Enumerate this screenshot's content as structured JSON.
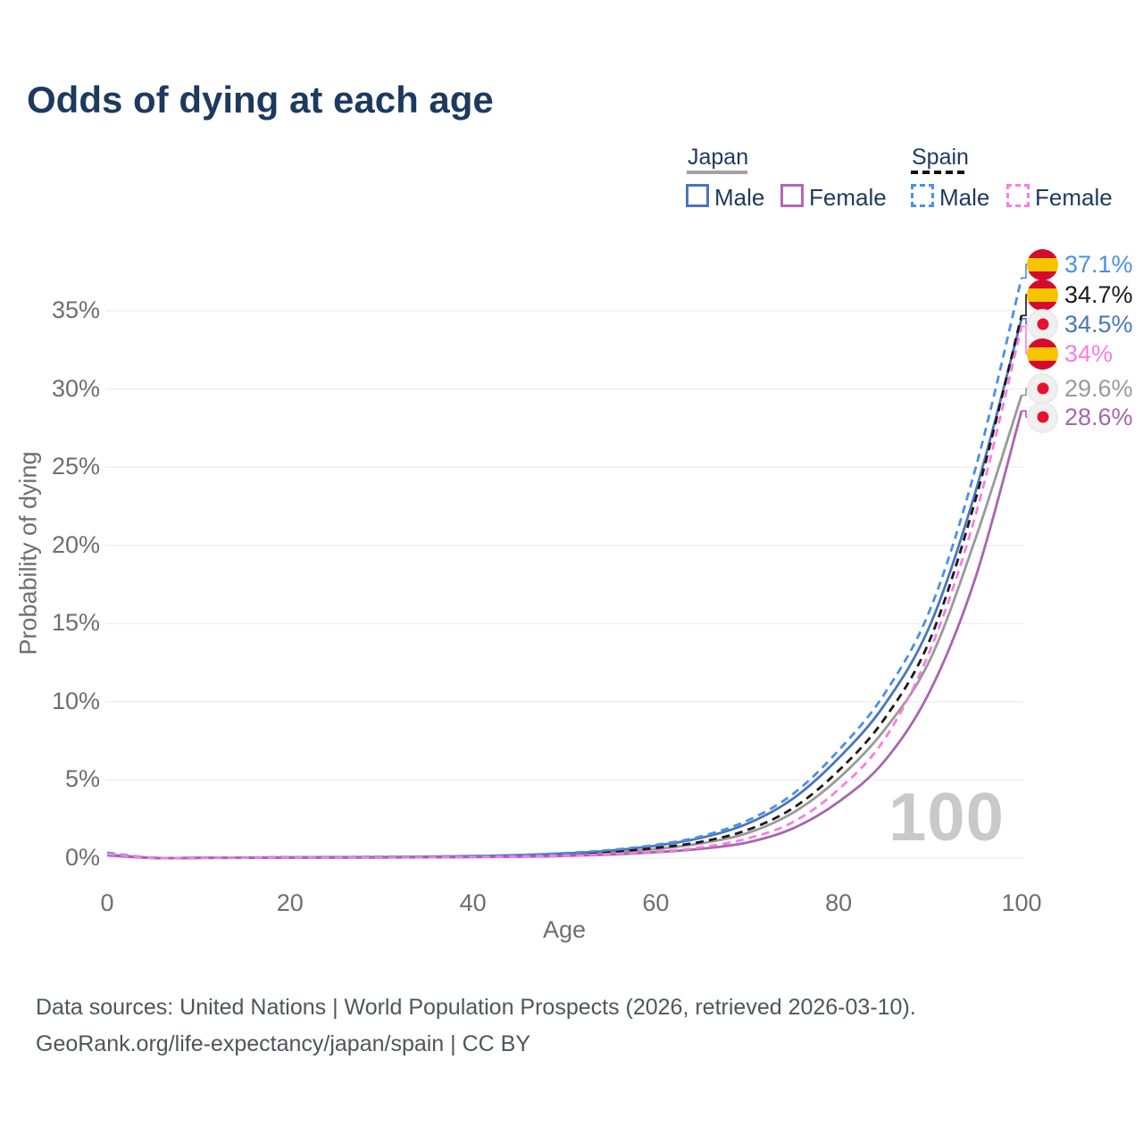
{
  "title": "Odds of dying at each age",
  "legend": {
    "japan": {
      "label": "Japan",
      "male": "Male",
      "female": "Female"
    },
    "spain": {
      "label": "Spain",
      "male": "Male",
      "female": "Female"
    },
    "japan_line_color": "#a3a3a3",
    "spain_line_color": "#111111"
  },
  "chart_data": {
    "type": "line",
    "title": "Odds of dying at each age",
    "xlabel": "Age",
    "ylabel": "Probability of dying",
    "xlim": [
      0,
      100
    ],
    "ylim_percent": [
      0,
      38.5
    ],
    "x_ticks": [
      0,
      20,
      40,
      60,
      80,
      100
    ],
    "y_tick_labels": [
      "0%",
      "5%",
      "10%",
      "15%",
      "20%",
      "25%",
      "30%",
      "35%"
    ],
    "grid": true,
    "legend_position": "top-right",
    "watermark": "100",
    "x": [
      0,
      5,
      10,
      15,
      20,
      25,
      30,
      35,
      40,
      45,
      50,
      55,
      60,
      65,
      70,
      75,
      80,
      85,
      90,
      95,
      100
    ],
    "series": [
      {
        "name": "Japan",
        "group": "Japan",
        "sex": "total",
        "color": "#9a9a9a",
        "dash": false,
        "flag": "japan",
        "end_label": "29.6%",
        "end_value": 29.6,
        "values": [
          0.2,
          0.01,
          0.02,
          0.02,
          0.04,
          0.05,
          0.06,
          0.07,
          0.1,
          0.14,
          0.22,
          0.36,
          0.58,
          0.95,
          1.6,
          2.9,
          5.1,
          8.2,
          12.7,
          20.5,
          29.6
        ]
      },
      {
        "name": "Japan Male",
        "group": "Japan",
        "sex": "male",
        "color": "#4a76bb",
        "dash": false,
        "flag": "japan",
        "end_label": "34.5%",
        "end_value": 34.5,
        "values": [
          0.22,
          0.02,
          0.02,
          0.03,
          0.05,
          0.06,
          0.07,
          0.09,
          0.13,
          0.19,
          0.3,
          0.48,
          0.8,
          1.3,
          2.2,
          3.8,
          6.4,
          9.8,
          14.9,
          23.5,
          34.5
        ]
      },
      {
        "name": "Japan Female",
        "group": "Japan",
        "sex": "female",
        "color": "#a766ae",
        "dash": false,
        "flag": "japan",
        "end_label": "28.6%",
        "end_value": 28.6,
        "values": [
          0.18,
          0.01,
          0.01,
          0.02,
          0.03,
          0.03,
          0.04,
          0.05,
          0.07,
          0.09,
          0.14,
          0.23,
          0.38,
          0.6,
          1.0,
          1.9,
          3.6,
          6.2,
          10.7,
          18.0,
          28.6
        ]
      },
      {
        "name": "Spain",
        "group": "Spain",
        "sex": "total",
        "color": "#1a1a1a",
        "dash": true,
        "flag": "spain",
        "end_label": "34.7%",
        "end_value": 34.7,
        "values": [
          0.3,
          0.02,
          0.02,
          0.03,
          0.05,
          0.06,
          0.07,
          0.08,
          0.11,
          0.16,
          0.25,
          0.4,
          0.65,
          1.05,
          1.8,
          3.2,
          5.6,
          8.9,
          14.0,
          23.0,
          34.7
        ]
      },
      {
        "name": "Spain Male",
        "group": "Spain",
        "sex": "male",
        "color": "#4a90e8",
        "dash": true,
        "flag": "spain",
        "end_label": "37.1%",
        "end_value": 37.1,
        "values": [
          0.35,
          0.02,
          0.03,
          0.04,
          0.06,
          0.07,
          0.08,
          0.1,
          0.14,
          0.2,
          0.32,
          0.52,
          0.85,
          1.4,
          2.4,
          4.1,
          6.9,
          10.5,
          15.9,
          25.0,
          37.1
        ]
      },
      {
        "name": "Spain Female",
        "group": "Spain",
        "sex": "female",
        "color": "#f87de4",
        "dash": true,
        "flag": "spain",
        "end_label": "34%",
        "end_value": 34.0,
        "values": [
          0.28,
          0.01,
          0.02,
          0.02,
          0.03,
          0.03,
          0.04,
          0.05,
          0.07,
          0.1,
          0.16,
          0.26,
          0.42,
          0.7,
          1.25,
          2.3,
          4.4,
          7.6,
          13.3,
          22.0,
          34.0
        ]
      }
    ]
  },
  "footer": {
    "line1": "Data sources: United Nations | World Population Prospects (2026, retrieved 2026-03-10).",
    "line2": "GeoRank.org/life-expectancy/japan/spain | CC BY"
  }
}
